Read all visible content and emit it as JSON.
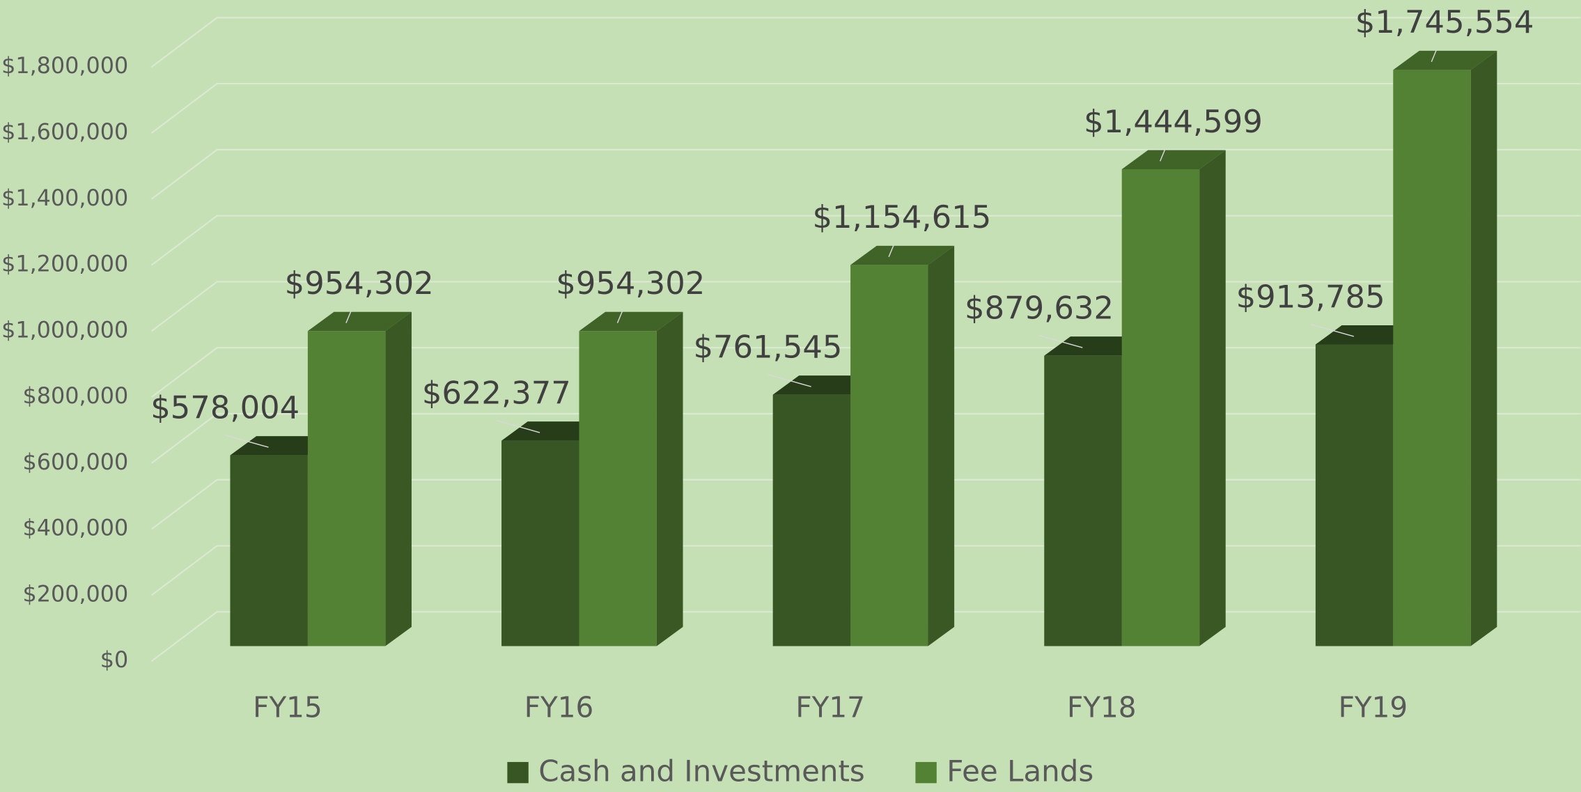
{
  "chart_data": {
    "type": "bar3d",
    "categories": [
      "FY15",
      "FY16",
      "FY17",
      "FY18",
      "FY19"
    ],
    "series": [
      {
        "name": "Cash and Investments",
        "color": "#375623",
        "values": [
          578004,
          622377,
          761545,
          879632,
          913785
        ],
        "value_labels": [
          "$578,004",
          "$622,377",
          "$761,545",
          "$879,632",
          "$913,785"
        ]
      },
      {
        "name": "Fee Lands",
        "color": "#548235",
        "values": [
          954302,
          954302,
          1154615,
          1444599,
          1745554
        ],
        "value_labels": [
          "$954,302",
          "$954,302",
          "$1,154,615",
          "$1,444,599",
          "$1,745,554"
        ]
      }
    ],
    "ylim": [
      0,
      1800000
    ],
    "yticks": [
      {
        "value": 0,
        "label": "$0"
      },
      {
        "value": 200000,
        "label": "$200,000"
      },
      {
        "value": 400000,
        "label": "$400,000"
      },
      {
        "value": 600000,
        "label": "$600,000"
      },
      {
        "value": 800000,
        "label": "$800,000"
      },
      {
        "value": 1000000,
        "label": "$1,000,000"
      },
      {
        "value": 1200000,
        "label": "$1,200,000"
      },
      {
        "value": 1400000,
        "label": "$1,400,000"
      },
      {
        "value": 1600000,
        "label": "$1,600,000"
      },
      {
        "value": 1800000,
        "label": "$1,800,000"
      }
    ],
    "grid": true,
    "legend": "bottom"
  }
}
